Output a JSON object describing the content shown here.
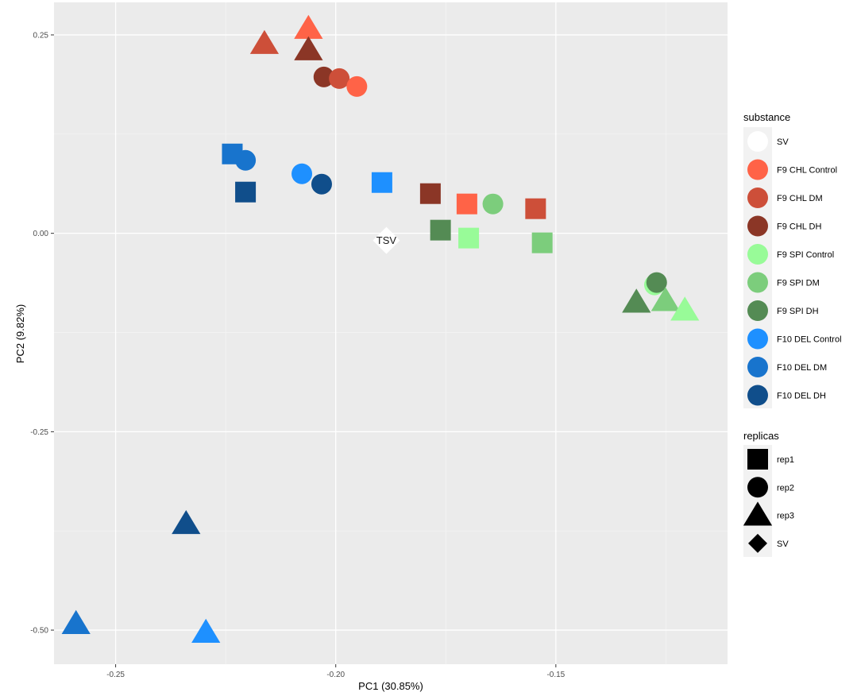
{
  "chart_data": {
    "type": "scatter",
    "xlabel": "PC1 (30.85%)",
    "ylabel": "PC2 (9.82%)",
    "xlim": [
      -0.264,
      -0.111
    ],
    "ylim": [
      -0.543,
      0.291
    ],
    "xticks": [
      {
        "value": -0.25,
        "label": "-0.25"
      },
      {
        "value": -0.2,
        "label": "-0.20"
      },
      {
        "value": -0.15,
        "label": "-0.15"
      }
    ],
    "yticks": [
      {
        "value": 0.25,
        "label": "0.25"
      },
      {
        "value": 0.0,
        "label": "0.00"
      },
      {
        "value": -0.25,
        "label": "-0.25"
      },
      {
        "value": -0.5,
        "label": "-0.50"
      }
    ],
    "grid": true,
    "legend_placement": "right",
    "legend": {
      "substance_title": "substance",
      "substances": [
        {
          "name": "SV",
          "color": "#ffffff"
        },
        {
          "name": "F9 CHL Control",
          "color": "#ff6347"
        },
        {
          "name": "F9 CHL DM",
          "color": "#cd4f39"
        },
        {
          "name": "F9 CHL DH",
          "color": "#8b3626"
        },
        {
          "name": "F9 SPI Control",
          "color": "#98fb98"
        },
        {
          "name": "F9 SPI DM",
          "color": "#7ccd7c"
        },
        {
          "name": "F9 SPI DH",
          "color": "#548b54"
        },
        {
          "name": "F10 DEL Control",
          "color": "#1e90ff"
        },
        {
          "name": "F10 DEL DM",
          "color": "#1874cd"
        },
        {
          "name": "F10 DEL DH",
          "color": "#104e8b"
        }
      ],
      "replicas_title": "replicas",
      "replicas": [
        {
          "name": "rep1",
          "shape": "square"
        },
        {
          "name": "rep2",
          "shape": "circle"
        },
        {
          "name": "rep3",
          "shape": "triangle"
        },
        {
          "name": "SV",
          "shape": "diamond"
        }
      ]
    },
    "annotation": {
      "text": "TSV",
      "x": -0.1885,
      "y": -0.009
    },
    "points": [
      {
        "x": -0.2062,
        "y": 0.258,
        "substance": "F9 CHL Control",
        "replica": "rep3"
      },
      {
        "x": -0.2162,
        "y": 0.239,
        "substance": "F9 CHL DM",
        "replica": "rep3"
      },
      {
        "x": -0.2062,
        "y": 0.231,
        "substance": "F9 CHL DH",
        "replica": "rep3"
      },
      {
        "x": -0.2027,
        "y": 0.197,
        "substance": "F9 CHL DH",
        "replica": "rep2"
      },
      {
        "x": -0.1992,
        "y": 0.195,
        "substance": "F9 CHL DM",
        "replica": "rep2"
      },
      {
        "x": -0.1952,
        "y": 0.185,
        "substance": "F9 CHL Control",
        "replica": "rep2"
      },
      {
        "x": -0.2235,
        "y": 0.1,
        "substance": "F10 DEL DM",
        "replica": "rep1"
      },
      {
        "x": -0.2205,
        "y": 0.092,
        "substance": "F10 DEL DM",
        "replica": "rep2"
      },
      {
        "x": -0.2205,
        "y": 0.052,
        "substance": "F10 DEL DH",
        "replica": "rep1"
      },
      {
        "x": -0.2077,
        "y": 0.075,
        "substance": "F10 DEL Control",
        "replica": "rep2"
      },
      {
        "x": -0.2032,
        "y": 0.062,
        "substance": "F10 DEL DH",
        "replica": "rep2"
      },
      {
        "x": -0.1895,
        "y": 0.064,
        "substance": "F10 DEL Control",
        "replica": "rep1"
      },
      {
        "x": -0.1785,
        "y": 0.05,
        "substance": "F9 CHL DH",
        "replica": "rep1"
      },
      {
        "x": -0.1702,
        "y": 0.037,
        "substance": "F9 CHL Control",
        "replica": "rep1"
      },
      {
        "x": -0.1643,
        "y": 0.037,
        "substance": "F9 SPI DM",
        "replica": "rep2"
      },
      {
        "x": -0.1546,
        "y": 0.031,
        "substance": "F9 CHL DM",
        "replica": "rep1"
      },
      {
        "x": -0.1762,
        "y": 0.004,
        "substance": "F9 SPI DH",
        "replica": "rep1"
      },
      {
        "x": -0.1698,
        "y": -0.006,
        "substance": "F9 SPI Control",
        "replica": "rep1"
      },
      {
        "x": -0.1531,
        "y": -0.012,
        "substance": "F9 SPI DM",
        "replica": "rep1"
      },
      {
        "x": -0.1885,
        "y": -0.009,
        "substance": "SV",
        "replica": "SV"
      },
      {
        "x": -0.1276,
        "y": -0.065,
        "substance": "F9 SPI Control",
        "replica": "rep2"
      },
      {
        "x": -0.1271,
        "y": -0.062,
        "substance": "F9 SPI DH",
        "replica": "rep2"
      },
      {
        "x": -0.1317,
        "y": -0.087,
        "substance": "F9 SPI DH",
        "replica": "rep3"
      },
      {
        "x": -0.1251,
        "y": -0.085,
        "substance": "F9 SPI DM",
        "replica": "rep3"
      },
      {
        "x": -0.1207,
        "y": -0.097,
        "substance": "F9 SPI Control",
        "replica": "rep3"
      },
      {
        "x": -0.234,
        "y": -0.366,
        "substance": "F10 DEL DH",
        "replica": "rep3"
      },
      {
        "x": -0.259,
        "y": -0.492,
        "substance": "F10 DEL DM",
        "replica": "rep3"
      },
      {
        "x": -0.2295,
        "y": -0.503,
        "substance": "F10 DEL Control",
        "replica": "rep3"
      }
    ]
  }
}
